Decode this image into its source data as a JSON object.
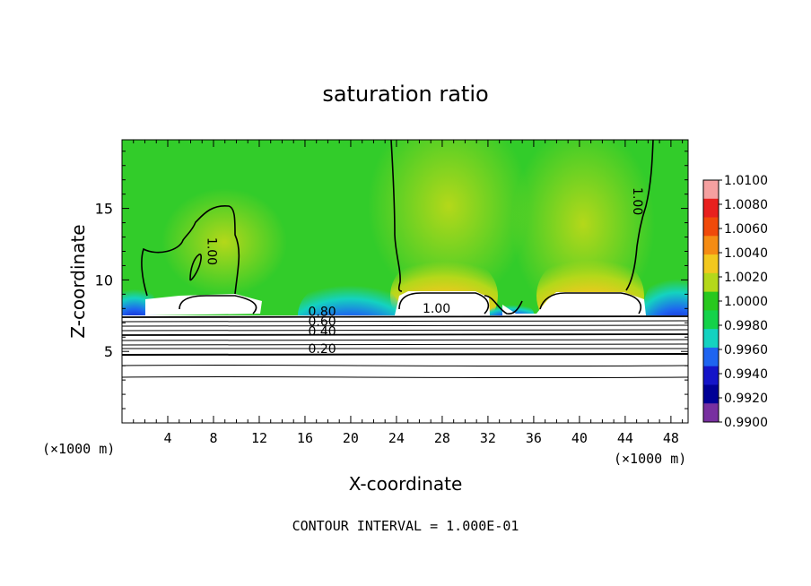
{
  "chart_data": {
    "type": "heatmap",
    "title": "saturation ratio",
    "xlabel": "X-coordinate",
    "ylabel": "Z-coordinate",
    "x_unit_label_left": "(×1000 m)",
    "x_unit_label_right": "(×1000 m)",
    "xlim": [
      0,
      49.5
    ],
    "ylim": [
      0,
      19.8
    ],
    "x_ticks": [
      4,
      8,
      12,
      16,
      20,
      24,
      28,
      32,
      36,
      40,
      44,
      48
    ],
    "y_ticks": [
      5,
      10,
      15
    ],
    "footer": "CONTOUR INTERVAL = 1.000E-01",
    "colorbar": {
      "labels": [
        "1.0100",
        "1.0080",
        "1.0060",
        "1.0040",
        "1.0020",
        "1.0000",
        "0.9980",
        "0.9960",
        "0.9940",
        "0.9920",
        "0.9900"
      ],
      "colors": [
        "#f5a0a0",
        "#e8201e",
        "#f04a0a",
        "#f58c14",
        "#f2c81e",
        "#b4d81a",
        "#28c81e",
        "#14d24a",
        "#14d2c0",
        "#1e64f0",
        "#1414c8",
        "#000096",
        "#7830a0"
      ]
    },
    "contour_labels": [
      {
        "text": "1.00",
        "x": 44.7,
        "y": 15.5
      },
      {
        "text": "1.00",
        "x": 7.5,
        "y": 12.0
      },
      {
        "text": "1.00",
        "x": 27.5,
        "y": 7.7
      },
      {
        "text": "0.80",
        "x": 17.5,
        "y": 7.5
      },
      {
        "text": "0.60",
        "x": 17.5,
        "y": 6.8
      },
      {
        "text": "0.40",
        "x": 17.5,
        "y": 6.1
      },
      {
        "text": "0.20",
        "x": 17.5,
        "y": 4.9
      }
    ]
  }
}
